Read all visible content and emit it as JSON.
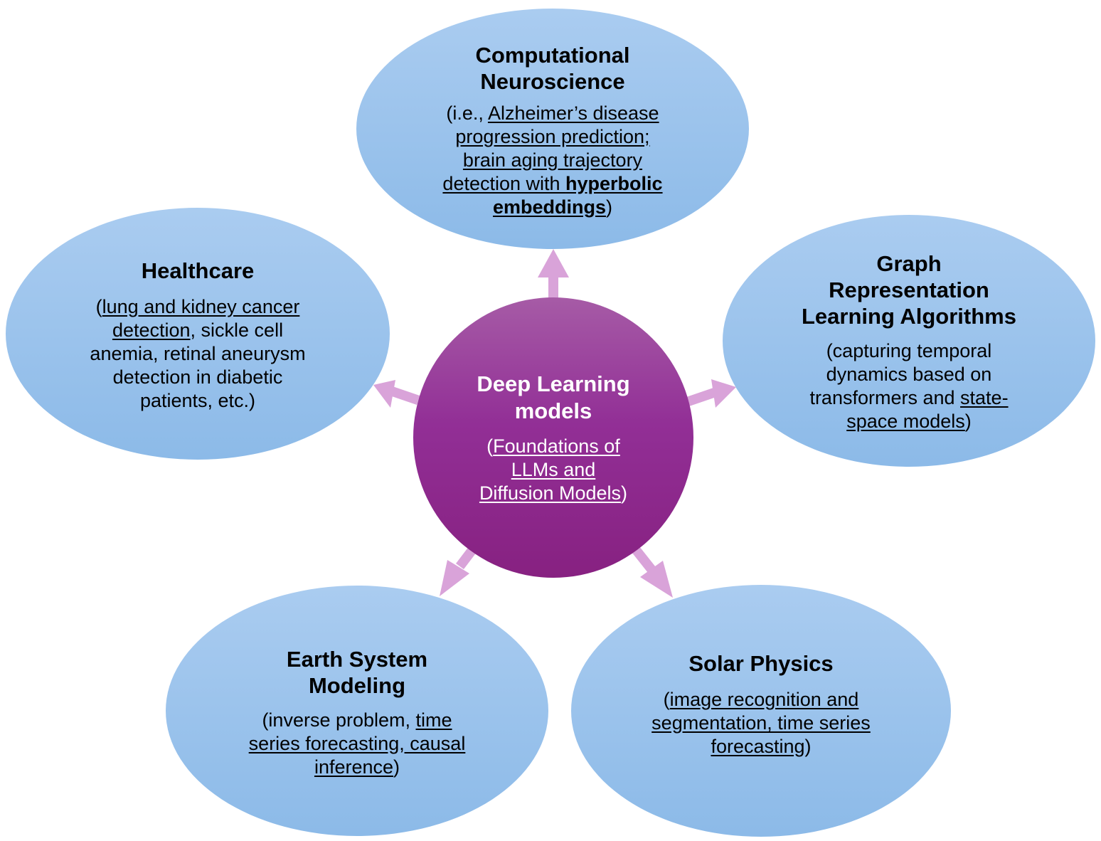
{
  "center": {
    "title_line1": "Deep Learning",
    "title_line2": "models",
    "desc_open": "(",
    "desc_line1": "Foundations of",
    "desc_line2": "LLMs and",
    "desc_line3": "Diffusion Models",
    "desc_close": ")"
  },
  "neuroscience": {
    "title_line1": "Computational",
    "title_line2": "Neuroscience",
    "desc_prefix": "(i.e., ",
    "desc_line1": "Alzheimer’s disease",
    "desc_line2": "progression prediction;",
    "desc_line3": "brain aging trajectory",
    "desc_line4": "detection with ",
    "desc_bold_line4": "hyperbolic",
    "desc_bold_line5": "embeddings",
    "desc_close": ")"
  },
  "healthcare": {
    "title": "Healthcare",
    "desc_open": "(",
    "desc_u_line1": "lung and kidney cancer",
    "desc_u_line2": "detection",
    "desc_line2_rest": ", sickle cell",
    "desc_line3": "anemia, retinal aneurysm",
    "desc_line4": "detection in diabetic",
    "desc_line5": "patients, etc.)"
  },
  "graph": {
    "title_line1": "Graph",
    "title_line2": "Representation",
    "title_line3": "Learning Algorithms",
    "desc_line1": "(capturing temporal",
    "desc_line2": "dynamics based on",
    "desc_line3_plain": "transformers and ",
    "desc_line3_u": "state-",
    "desc_line4_u": "space models",
    "desc_close": ")"
  },
  "earth": {
    "title_line1": "Earth System",
    "title_line2": "Modeling",
    "desc_line1_plain": "(inverse problem, ",
    "desc_line1_u": "time",
    "desc_line2_u": "series forecasting, causal",
    "desc_line3_u": "inference",
    "desc_close": ")"
  },
  "solar": {
    "title": "Solar Physics",
    "desc_open": "(",
    "desc_line1_u": "image recognition and",
    "desc_line2_u": "segmentation, time series",
    "desc_line3_u": "forecasting",
    "desc_close": ")"
  },
  "colors": {
    "arrow": "#d9a3d9",
    "node_top": "#aaccf0",
    "node_bottom": "#8cbae8",
    "center_top": "#a65ba6",
    "center_bottom": "#872181"
  }
}
